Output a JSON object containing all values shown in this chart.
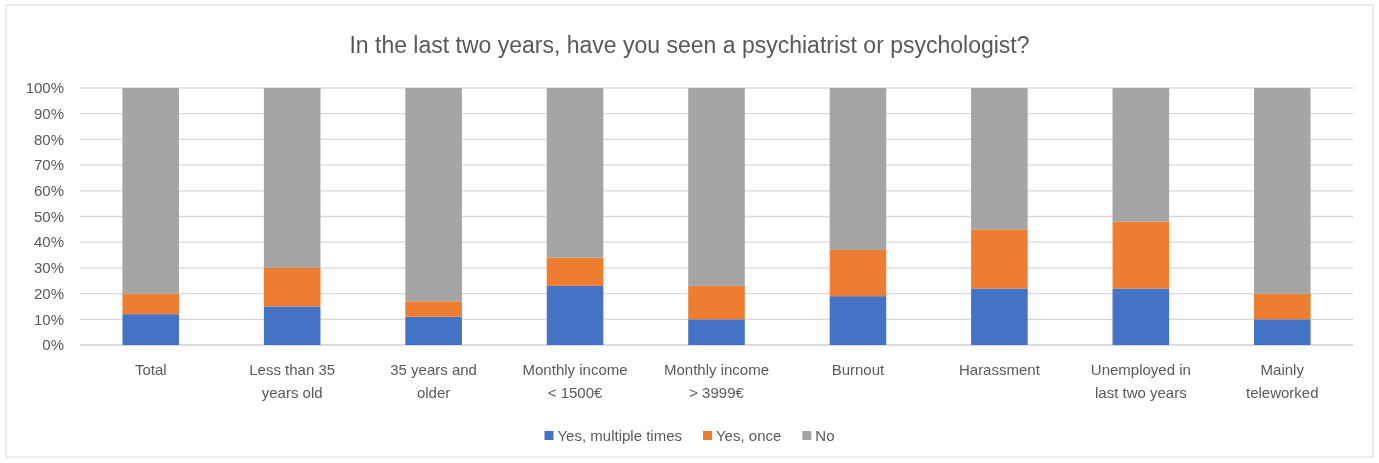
{
  "chart_data": {
    "type": "bar",
    "title": "In the last two years, have you seen a psychiatrist or psychologist?",
    "categories": [
      "Total",
      "Less than 35 years old",
      "35 years and older",
      "Monthly income < 1500€",
      "Monthly income > 3999€",
      "Burnout",
      "Harassment",
      "Unemployed in last two years",
      "Mainly teleworked"
    ],
    "series": [
      {
        "name": "Yes, multiple times",
        "color": "#4472c4",
        "values": [
          12,
          15,
          11,
          23,
          10,
          19,
          22,
          22,
          10
        ]
      },
      {
        "name": "Yes, once",
        "color": "#ed7d31",
        "values": [
          8,
          15,
          6,
          11,
          13,
          18,
          23,
          26,
          10
        ]
      },
      {
        "name": "No",
        "color": "#a5a5a5",
        "values": [
          80,
          70,
          83,
          66,
          77,
          63,
          55,
          52,
          80
        ]
      }
    ],
    "stacked": true,
    "ylim": [
      0,
      100
    ],
    "yticks": [
      {
        "value": 0,
        "label": "0%"
      },
      {
        "value": 10,
        "label": "10%"
      },
      {
        "value": 20,
        "label": "20%"
      },
      {
        "value": 30,
        "label": "30%"
      },
      {
        "value": 40,
        "label": "40%"
      },
      {
        "value": 50,
        "label": "50%"
      },
      {
        "value": 60,
        "label": "60%"
      },
      {
        "value": 70,
        "label": "70%"
      },
      {
        "value": 80,
        "label": "80%"
      },
      {
        "value": 90,
        "label": "90%"
      },
      {
        "value": 100,
        "label": "100%"
      }
    ],
    "grid": "y",
    "legend": "bottom"
  }
}
